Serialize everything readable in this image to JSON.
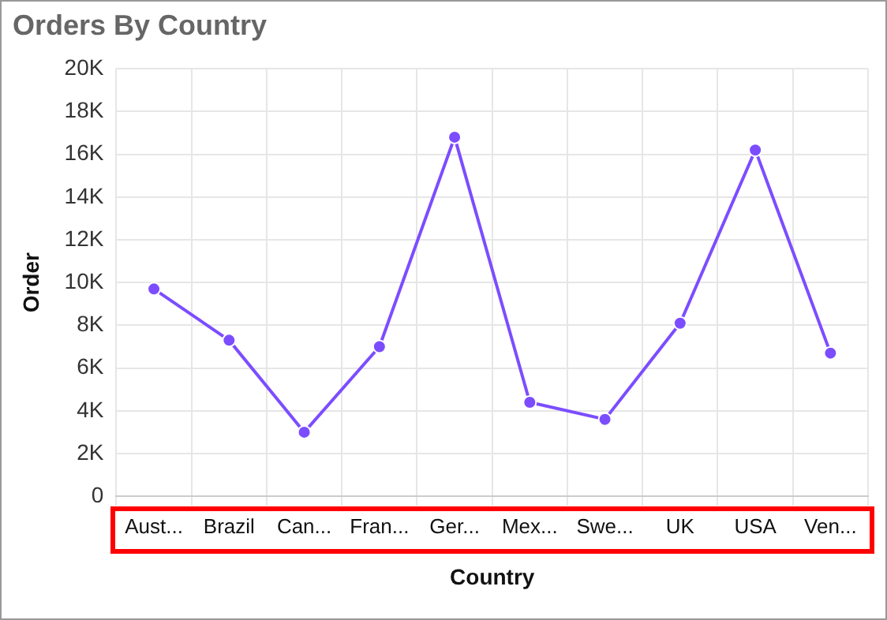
{
  "chart_data": {
    "type": "line",
    "title": "Orders By Country",
    "xlabel": "Country",
    "ylabel": "Order",
    "categories": [
      "Aust...",
      "Brazil",
      "Can...",
      "Fran...",
      "Ger...",
      "Mex...",
      "Swe...",
      "UK",
      "USA",
      "Ven..."
    ],
    "series": [
      {
        "color": "#7c4dff",
        "values": [
          9700,
          7300,
          3000,
          7000,
          16800,
          4400,
          3600,
          8100,
          16200,
          6700
        ]
      }
    ],
    "ylim": [
      0,
      20000
    ],
    "yticks": [
      0,
      {
        "value": 2000,
        "label": "2K"
      },
      {
        "value": 4000,
        "label": "4K"
      },
      {
        "value": 6000,
        "label": "6K"
      },
      {
        "value": 8000,
        "label": "8K"
      },
      {
        "value": 10000,
        "label": "10K"
      },
      {
        "value": 12000,
        "label": "12K"
      },
      {
        "value": 14000,
        "label": "14K"
      },
      {
        "value": 16000,
        "label": "16K"
      },
      {
        "value": 18000,
        "label": "18K"
      },
      {
        "value": 20000,
        "label": "20K"
      }
    ],
    "grid": true,
    "marker": "circle",
    "line_style": "solid"
  }
}
